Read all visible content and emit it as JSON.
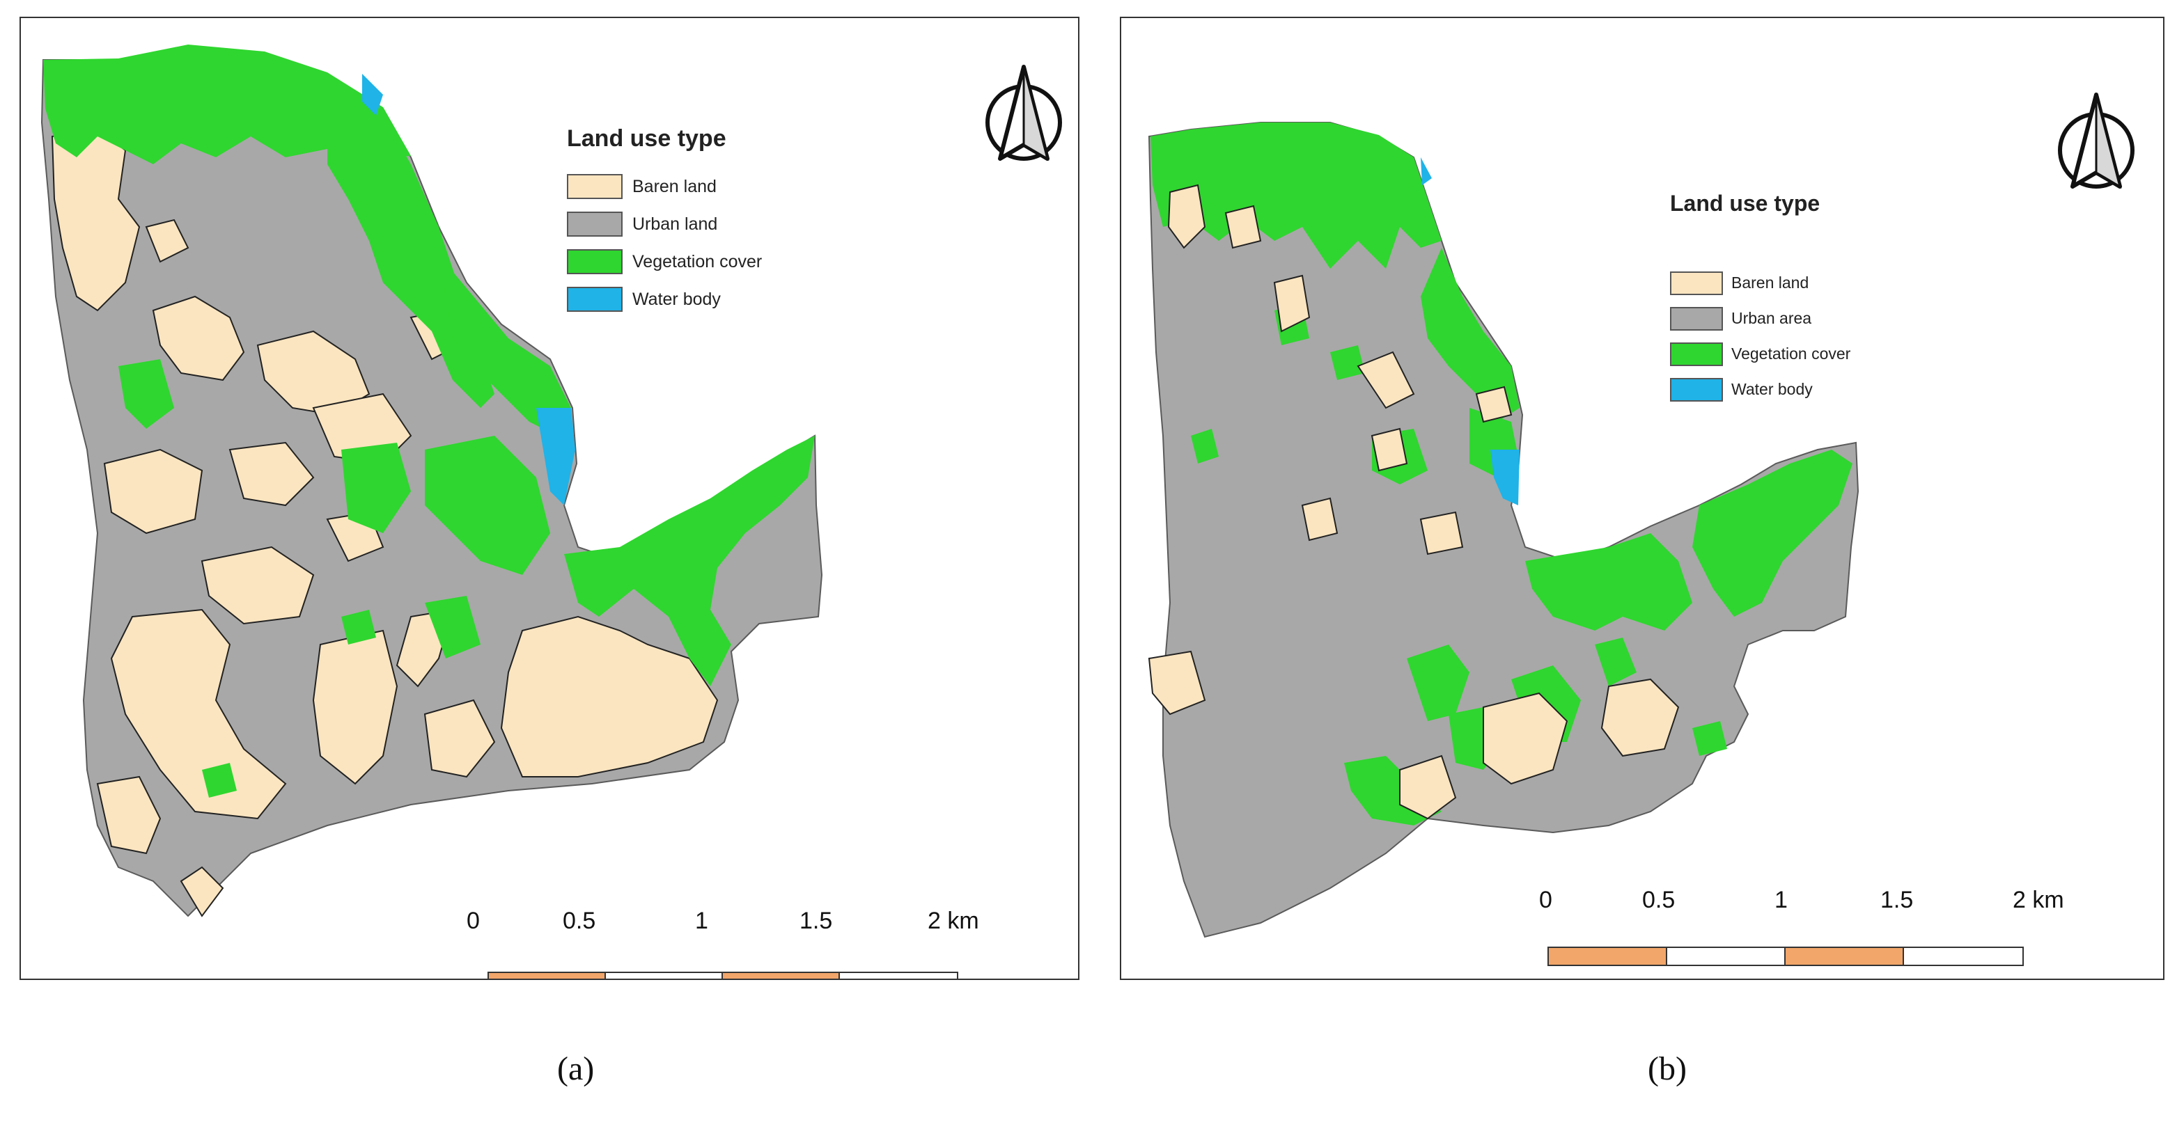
{
  "panels": [
    {
      "id": "a",
      "legend": {
        "title": "Land use type",
        "items": [
          {
            "label": "Baren land",
            "color": "#fbe5c0"
          },
          {
            "label": "Urban land",
            "color": "#a8a8a8"
          },
          {
            "label": "Vegetation cover",
            "color": "#2fd62f"
          },
          {
            "label": "Water body",
            "color": "#1fb3e8"
          }
        ]
      },
      "scale_bar": {
        "ticks": [
          "0",
          "0.5",
          "1",
          "1.5",
          "2 km"
        ],
        "colors": [
          "#f2a66a",
          "#ffffff"
        ]
      },
      "caption": "(a)",
      "north_arrow": "north-arrow-icon"
    },
    {
      "id": "b",
      "legend": {
        "title": "Land use type",
        "items": [
          {
            "label": "Baren land",
            "color": "#fbe5c0"
          },
          {
            "label": "Urban area",
            "color": "#a8a8a8"
          },
          {
            "label": "Vegetation cover",
            "color": "#2fd62f"
          },
          {
            "label": "Water body",
            "color": "#1fb3e8"
          }
        ]
      },
      "scale_bar": {
        "ticks": [
          "0",
          "0.5",
          "1",
          "1.5",
          "2 km"
        ],
        "colors": [
          "#f2a66a",
          "#ffffff"
        ]
      },
      "caption": "(b)",
      "north_arrow": "north-arrow-icon"
    }
  ]
}
